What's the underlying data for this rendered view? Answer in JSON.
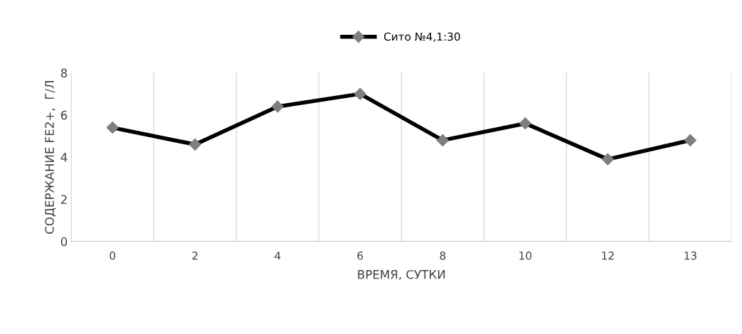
{
  "chart_data": {
    "type": "line",
    "xlabel": "ВРЕМЯ, СУТКИ",
    "ylabel": "СОДЕРЖАНИЕ FE2+,  Г/Л",
    "categories": [
      "0",
      "2",
      "4",
      "6",
      "8",
      "10",
      "12",
      "13"
    ],
    "series": [
      {
        "name": "Сито №4,1:30",
        "color": "#000000",
        "values": [
          5.4,
          4.6,
          6.4,
          7.0,
          4.8,
          5.6,
          3.9,
          4.8
        ]
      }
    ],
    "ylim": [
      0,
      8
    ],
    "yticks": [
      0,
      2,
      4,
      6,
      8
    ],
    "grid": "x",
    "legend": "top",
    "marker": "diamond",
    "line_style": "solid"
  }
}
